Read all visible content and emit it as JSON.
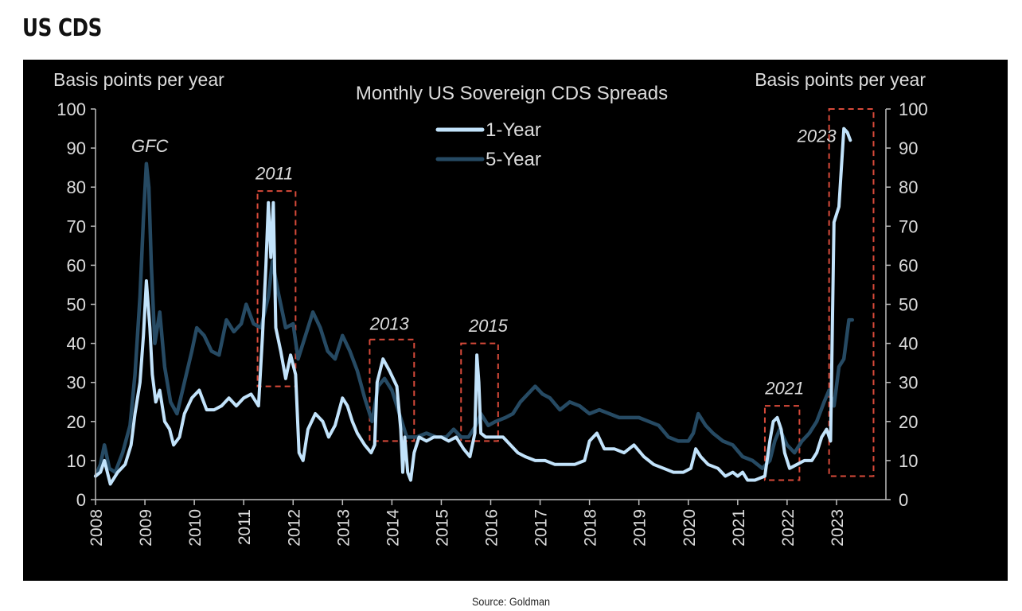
{
  "page": {
    "title": "US CDS",
    "source": "Source: Goldman"
  },
  "chart_data": {
    "type": "line",
    "title": "Monthly US Sovereign  CDS Spreads",
    "ylabel_left": "Basis points  per  year",
    "ylabel_right": "Basis points  per  year",
    "xlabel": "",
    "ylim": [
      0,
      100
    ],
    "y_ticks": [
      0,
      10,
      20,
      30,
      40,
      50,
      60,
      70,
      80,
      90,
      100
    ],
    "xlim": [
      2008,
      2024
    ],
    "x_ticks": [
      "2008",
      "2009",
      "2010",
      "2011",
      "2012",
      "2013",
      "2014",
      "2015",
      "2016",
      "2017",
      "2018",
      "2019",
      "2020",
      "2021",
      "2022",
      "2023"
    ],
    "grid": false,
    "legend_position": "top-center",
    "background": "#000000",
    "colors": {
      "one_year": "#c2e3fb",
      "five_year": "#264a63",
      "annotation_box": "#d84a3a",
      "text": "#dcdcdc"
    },
    "series": [
      {
        "name": "1-Year",
        "key": "one_year",
        "points": [
          [
            2008.0,
            6
          ],
          [
            2008.1,
            7
          ],
          [
            2008.18,
            10
          ],
          [
            2008.3,
            4
          ],
          [
            2008.45,
            7
          ],
          [
            2008.6,
            9
          ],
          [
            2008.72,
            14
          ],
          [
            2008.8,
            22
          ],
          [
            2008.9,
            30
          ],
          [
            2008.97,
            42
          ],
          [
            2009.03,
            56
          ],
          [
            2009.1,
            44
          ],
          [
            2009.15,
            32
          ],
          [
            2009.22,
            25
          ],
          [
            2009.3,
            28
          ],
          [
            2009.4,
            20
          ],
          [
            2009.5,
            18
          ],
          [
            2009.58,
            14
          ],
          [
            2009.7,
            16
          ],
          [
            2009.8,
            22
          ],
          [
            2009.95,
            26
          ],
          [
            2010.1,
            28
          ],
          [
            2010.25,
            23
          ],
          [
            2010.4,
            23
          ],
          [
            2010.55,
            24
          ],
          [
            2010.7,
            26
          ],
          [
            2010.85,
            24
          ],
          [
            2011.0,
            26
          ],
          [
            2011.15,
            27
          ],
          [
            2011.3,
            24
          ],
          [
            2011.38,
            42
          ],
          [
            2011.45,
            60
          ],
          [
            2011.5,
            76
          ],
          [
            2011.55,
            62
          ],
          [
            2011.6,
            76
          ],
          [
            2011.65,
            44
          ],
          [
            2011.75,
            38
          ],
          [
            2011.85,
            31
          ],
          [
            2011.95,
            37
          ],
          [
            2012.05,
            32
          ],
          [
            2012.12,
            12
          ],
          [
            2012.2,
            10
          ],
          [
            2012.3,
            18
          ],
          [
            2012.45,
            22
          ],
          [
            2012.6,
            20
          ],
          [
            2012.72,
            16
          ],
          [
            2012.85,
            19
          ],
          [
            2013.0,
            26
          ],
          [
            2013.1,
            24
          ],
          [
            2013.2,
            20
          ],
          [
            2013.3,
            17
          ],
          [
            2013.45,
            14
          ],
          [
            2013.58,
            12
          ],
          [
            2013.65,
            14
          ],
          [
            2013.7,
            30
          ],
          [
            2013.82,
            36
          ],
          [
            2013.95,
            33
          ],
          [
            2014.1,
            29
          ],
          [
            2014.18,
            18
          ],
          [
            2014.22,
            7
          ],
          [
            2014.26,
            16
          ],
          [
            2014.32,
            7
          ],
          [
            2014.38,
            5
          ],
          [
            2014.45,
            12
          ],
          [
            2014.55,
            16
          ],
          [
            2014.7,
            15
          ],
          [
            2014.85,
            16
          ],
          [
            2015.0,
            16
          ],
          [
            2015.15,
            15
          ],
          [
            2015.3,
            16
          ],
          [
            2015.45,
            13
          ],
          [
            2015.58,
            11
          ],
          [
            2015.68,
            17
          ],
          [
            2015.72,
            37
          ],
          [
            2015.76,
            30
          ],
          [
            2015.8,
            17
          ],
          [
            2015.9,
            16
          ],
          [
            2016.1,
            16
          ],
          [
            2016.25,
            16
          ],
          [
            2016.4,
            14
          ],
          [
            2016.55,
            12
          ],
          [
            2016.7,
            11
          ],
          [
            2016.9,
            10
          ],
          [
            2017.1,
            10
          ],
          [
            2017.3,
            9
          ],
          [
            2017.5,
            9
          ],
          [
            2017.7,
            9
          ],
          [
            2017.9,
            10
          ],
          [
            2018.0,
            15
          ],
          [
            2018.15,
            17
          ],
          [
            2018.3,
            13
          ],
          [
            2018.5,
            13
          ],
          [
            2018.7,
            12
          ],
          [
            2018.9,
            14
          ],
          [
            2019.1,
            11
          ],
          [
            2019.3,
            9
          ],
          [
            2019.5,
            8
          ],
          [
            2019.7,
            7
          ],
          [
            2019.9,
            7
          ],
          [
            2020.05,
            8
          ],
          [
            2020.15,
            13
          ],
          [
            2020.25,
            11
          ],
          [
            2020.4,
            9
          ],
          [
            2020.6,
            8
          ],
          [
            2020.75,
            6
          ],
          [
            2020.9,
            7
          ],
          [
            2021.0,
            6
          ],
          [
            2021.1,
            7
          ],
          [
            2021.2,
            5
          ],
          [
            2021.35,
            5
          ],
          [
            2021.55,
            6
          ],
          [
            2021.65,
            15
          ],
          [
            2021.72,
            20
          ],
          [
            2021.8,
            21
          ],
          [
            2021.88,
            18
          ],
          [
            2021.95,
            12
          ],
          [
            2022.05,
            8
          ],
          [
            2022.2,
            9
          ],
          [
            2022.35,
            10
          ],
          [
            2022.5,
            10
          ],
          [
            2022.6,
            12
          ],
          [
            2022.7,
            16
          ],
          [
            2022.8,
            18
          ],
          [
            2022.88,
            15
          ],
          [
            2022.95,
            71
          ],
          [
            2023.05,
            75
          ],
          [
            2023.15,
            95
          ],
          [
            2023.22,
            94
          ],
          [
            2023.28,
            92
          ]
        ]
      },
      {
        "name": "5-Year",
        "key": "five_year",
        "points": [
          [
            2008.0,
            6
          ],
          [
            2008.1,
            9
          ],
          [
            2008.18,
            14
          ],
          [
            2008.28,
            8
          ],
          [
            2008.4,
            7
          ],
          [
            2008.55,
            12
          ],
          [
            2008.7,
            19
          ],
          [
            2008.8,
            32
          ],
          [
            2008.9,
            52
          ],
          [
            2008.97,
            72
          ],
          [
            2009.03,
            86
          ],
          [
            2009.08,
            80
          ],
          [
            2009.13,
            60
          ],
          [
            2009.2,
            40
          ],
          [
            2009.3,
            48
          ],
          [
            2009.4,
            34
          ],
          [
            2009.52,
            25
          ],
          [
            2009.65,
            22
          ],
          [
            2009.8,
            30
          ],
          [
            2009.95,
            38
          ],
          [
            2010.05,
            44
          ],
          [
            2010.2,
            42
          ],
          [
            2010.35,
            38
          ],
          [
            2010.5,
            37
          ],
          [
            2010.65,
            46
          ],
          [
            2010.8,
            43
          ],
          [
            2010.95,
            45
          ],
          [
            2011.05,
            50
          ],
          [
            2011.2,
            45
          ],
          [
            2011.35,
            44
          ],
          [
            2011.5,
            52
          ],
          [
            2011.58,
            61
          ],
          [
            2011.7,
            53
          ],
          [
            2011.85,
            44
          ],
          [
            2012.0,
            45
          ],
          [
            2012.1,
            36
          ],
          [
            2012.25,
            42
          ],
          [
            2012.4,
            48
          ],
          [
            2012.55,
            44
          ],
          [
            2012.7,
            38
          ],
          [
            2012.85,
            36
          ],
          [
            2013.0,
            42
          ],
          [
            2013.15,
            38
          ],
          [
            2013.3,
            33
          ],
          [
            2013.45,
            26
          ],
          [
            2013.6,
            20
          ],
          [
            2013.72,
            29
          ],
          [
            2013.85,
            31
          ],
          [
            2014.0,
            28
          ],
          [
            2014.15,
            22
          ],
          [
            2014.3,
            16
          ],
          [
            2014.5,
            16
          ],
          [
            2014.7,
            17
          ],
          [
            2014.9,
            16
          ],
          [
            2015.1,
            16
          ],
          [
            2015.25,
            18
          ],
          [
            2015.4,
            16
          ],
          [
            2015.55,
            16
          ],
          [
            2015.7,
            19
          ],
          [
            2015.8,
            22
          ],
          [
            2015.95,
            19
          ],
          [
            2016.1,
            20
          ],
          [
            2016.3,
            21
          ],
          [
            2016.45,
            22
          ],
          [
            2016.6,
            25
          ],
          [
            2016.75,
            27
          ],
          [
            2016.9,
            29
          ],
          [
            2017.05,
            27
          ],
          [
            2017.2,
            26
          ],
          [
            2017.4,
            23
          ],
          [
            2017.6,
            25
          ],
          [
            2017.8,
            24
          ],
          [
            2018.0,
            22
          ],
          [
            2018.2,
            23
          ],
          [
            2018.4,
            22
          ],
          [
            2018.6,
            21
          ],
          [
            2018.8,
            21
          ],
          [
            2019.0,
            21
          ],
          [
            2019.2,
            20
          ],
          [
            2019.4,
            19
          ],
          [
            2019.6,
            16
          ],
          [
            2019.8,
            15
          ],
          [
            2020.0,
            15
          ],
          [
            2020.1,
            17
          ],
          [
            2020.2,
            22
          ],
          [
            2020.35,
            19
          ],
          [
            2020.5,
            17
          ],
          [
            2020.7,
            15
          ],
          [
            2020.9,
            14
          ],
          [
            2021.1,
            11
          ],
          [
            2021.3,
            10
          ],
          [
            2021.5,
            8
          ],
          [
            2021.65,
            10
          ],
          [
            2021.75,
            15
          ],
          [
            2021.85,
            18
          ],
          [
            2022.0,
            14
          ],
          [
            2022.15,
            12
          ],
          [
            2022.3,
            15
          ],
          [
            2022.45,
            17
          ],
          [
            2022.6,
            20
          ],
          [
            2022.75,
            25
          ],
          [
            2022.85,
            28
          ],
          [
            2022.95,
            24
          ],
          [
            2023.05,
            34
          ],
          [
            2023.15,
            36
          ],
          [
            2023.25,
            46
          ],
          [
            2023.32,
            46
          ]
        ]
      }
    ],
    "annotations": [
      {
        "label": "GFC",
        "x": 2009.1,
        "y": 89
      },
      {
        "label": "2011",
        "x": 2011.62,
        "y": 82
      },
      {
        "label": "2013",
        "x": 2013.95,
        "y": 43.5
      },
      {
        "label": "2015",
        "x": 2015.95,
        "y": 43
      },
      {
        "label": "2021",
        "x": 2021.95,
        "y": 27
      },
      {
        "label": "2023",
        "x": 2022.6,
        "y": 91.5
      }
    ],
    "highlight_boxes": [
      {
        "label": "2011",
        "x0": 2011.28,
        "x1": 2012.05,
        "y0": 29,
        "y1": 79
      },
      {
        "label": "2013",
        "x0": 2013.55,
        "x1": 2014.45,
        "y0": 15,
        "y1": 41
      },
      {
        "label": "2015",
        "x0": 2015.4,
        "x1": 2016.15,
        "y0": 15,
        "y1": 40
      },
      {
        "label": "2021",
        "x0": 2021.55,
        "x1": 2022.25,
        "y0": 5,
        "y1": 24
      },
      {
        "label": "2023",
        "x0": 2022.85,
        "x1": 2023.75,
        "y0": 6,
        "y1": 100
      }
    ]
  }
}
